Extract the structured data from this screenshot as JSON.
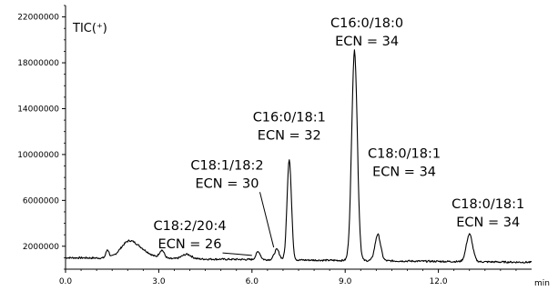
{
  "chart_data": {
    "type": "line",
    "title": "TIC(⁺)",
    "xlabel": "min",
    "ylabel": "",
    "xlim": [
      0,
      15
    ],
    "ylim": [
      0,
      23000000
    ],
    "x_ticks": [
      0.0,
      3.0,
      6.0,
      9.0,
      12.0
    ],
    "x_tick_labels": [
      "0.0",
      "3.0",
      "6.0",
      "9.0",
      "12.0"
    ],
    "y_ticks": [
      2000000,
      6000000,
      10000000,
      14000000,
      18000000,
      22000000
    ],
    "y_tick_labels": [
      "2000000",
      "6000000",
      "10000000",
      "14000000",
      "18000000",
      "22000000"
    ],
    "grid": false,
    "series": [
      {
        "baseline": 1000000,
        "drift": -400000,
        "peaks": [
          {
            "rt": 1.35,
            "height": 700000,
            "width": 0.05
          },
          {
            "rt": 2.0,
            "height": 1200000,
            "width": 0.25
          },
          {
            "rt": 2.4,
            "height": 700000,
            "width": 0.3
          },
          {
            "rt": 3.1,
            "height": 700000,
            "width": 0.08
          },
          {
            "rt": 3.9,
            "height": 400000,
            "width": 0.15
          },
          {
            "rt": 6.2,
            "height": 700000,
            "width": 0.07
          },
          {
            "rt": 6.8,
            "height": 900000,
            "width": 0.08
          },
          {
            "rt": 7.2,
            "height": 8800000,
            "width": 0.07
          },
          {
            "rt": 9.3,
            "height": 18300000,
            "width": 0.09
          },
          {
            "rt": 10.05,
            "height": 2300000,
            "width": 0.09
          },
          {
            "rt": 13.0,
            "height": 2400000,
            "width": 0.1
          }
        ],
        "noise_amplitude": 80000
      }
    ],
    "annotations": [
      {
        "line1": "C18:2/20:4",
        "line2": "ECN = 26",
        "x": 4.0,
        "y": 3400000,
        "arrow_to": [
          6.0,
          1200000
        ]
      },
      {
        "line1": "C18:1/18:2",
        "line2": "ECN = 30",
        "x": 5.2,
        "y": 8700000,
        "arrow_to": [
          6.7,
          1900000
        ]
      },
      {
        "line1": "C16:0/18:1",
        "line2": "ECN = 32",
        "x": 7.2,
        "y": 12900000
      },
      {
        "line1": "C16:0/18:0",
        "line2": "ECN = 34",
        "x": 9.7,
        "y": 21100000
      },
      {
        "line1": "C18:0/18:1",
        "line2": "ECN = 34",
        "x": 10.9,
        "y": 9700000
      },
      {
        "line1": "C18:0/18:1",
        "line2": "ECN = 34",
        "x": 13.6,
        "y": 5300000
      }
    ]
  }
}
